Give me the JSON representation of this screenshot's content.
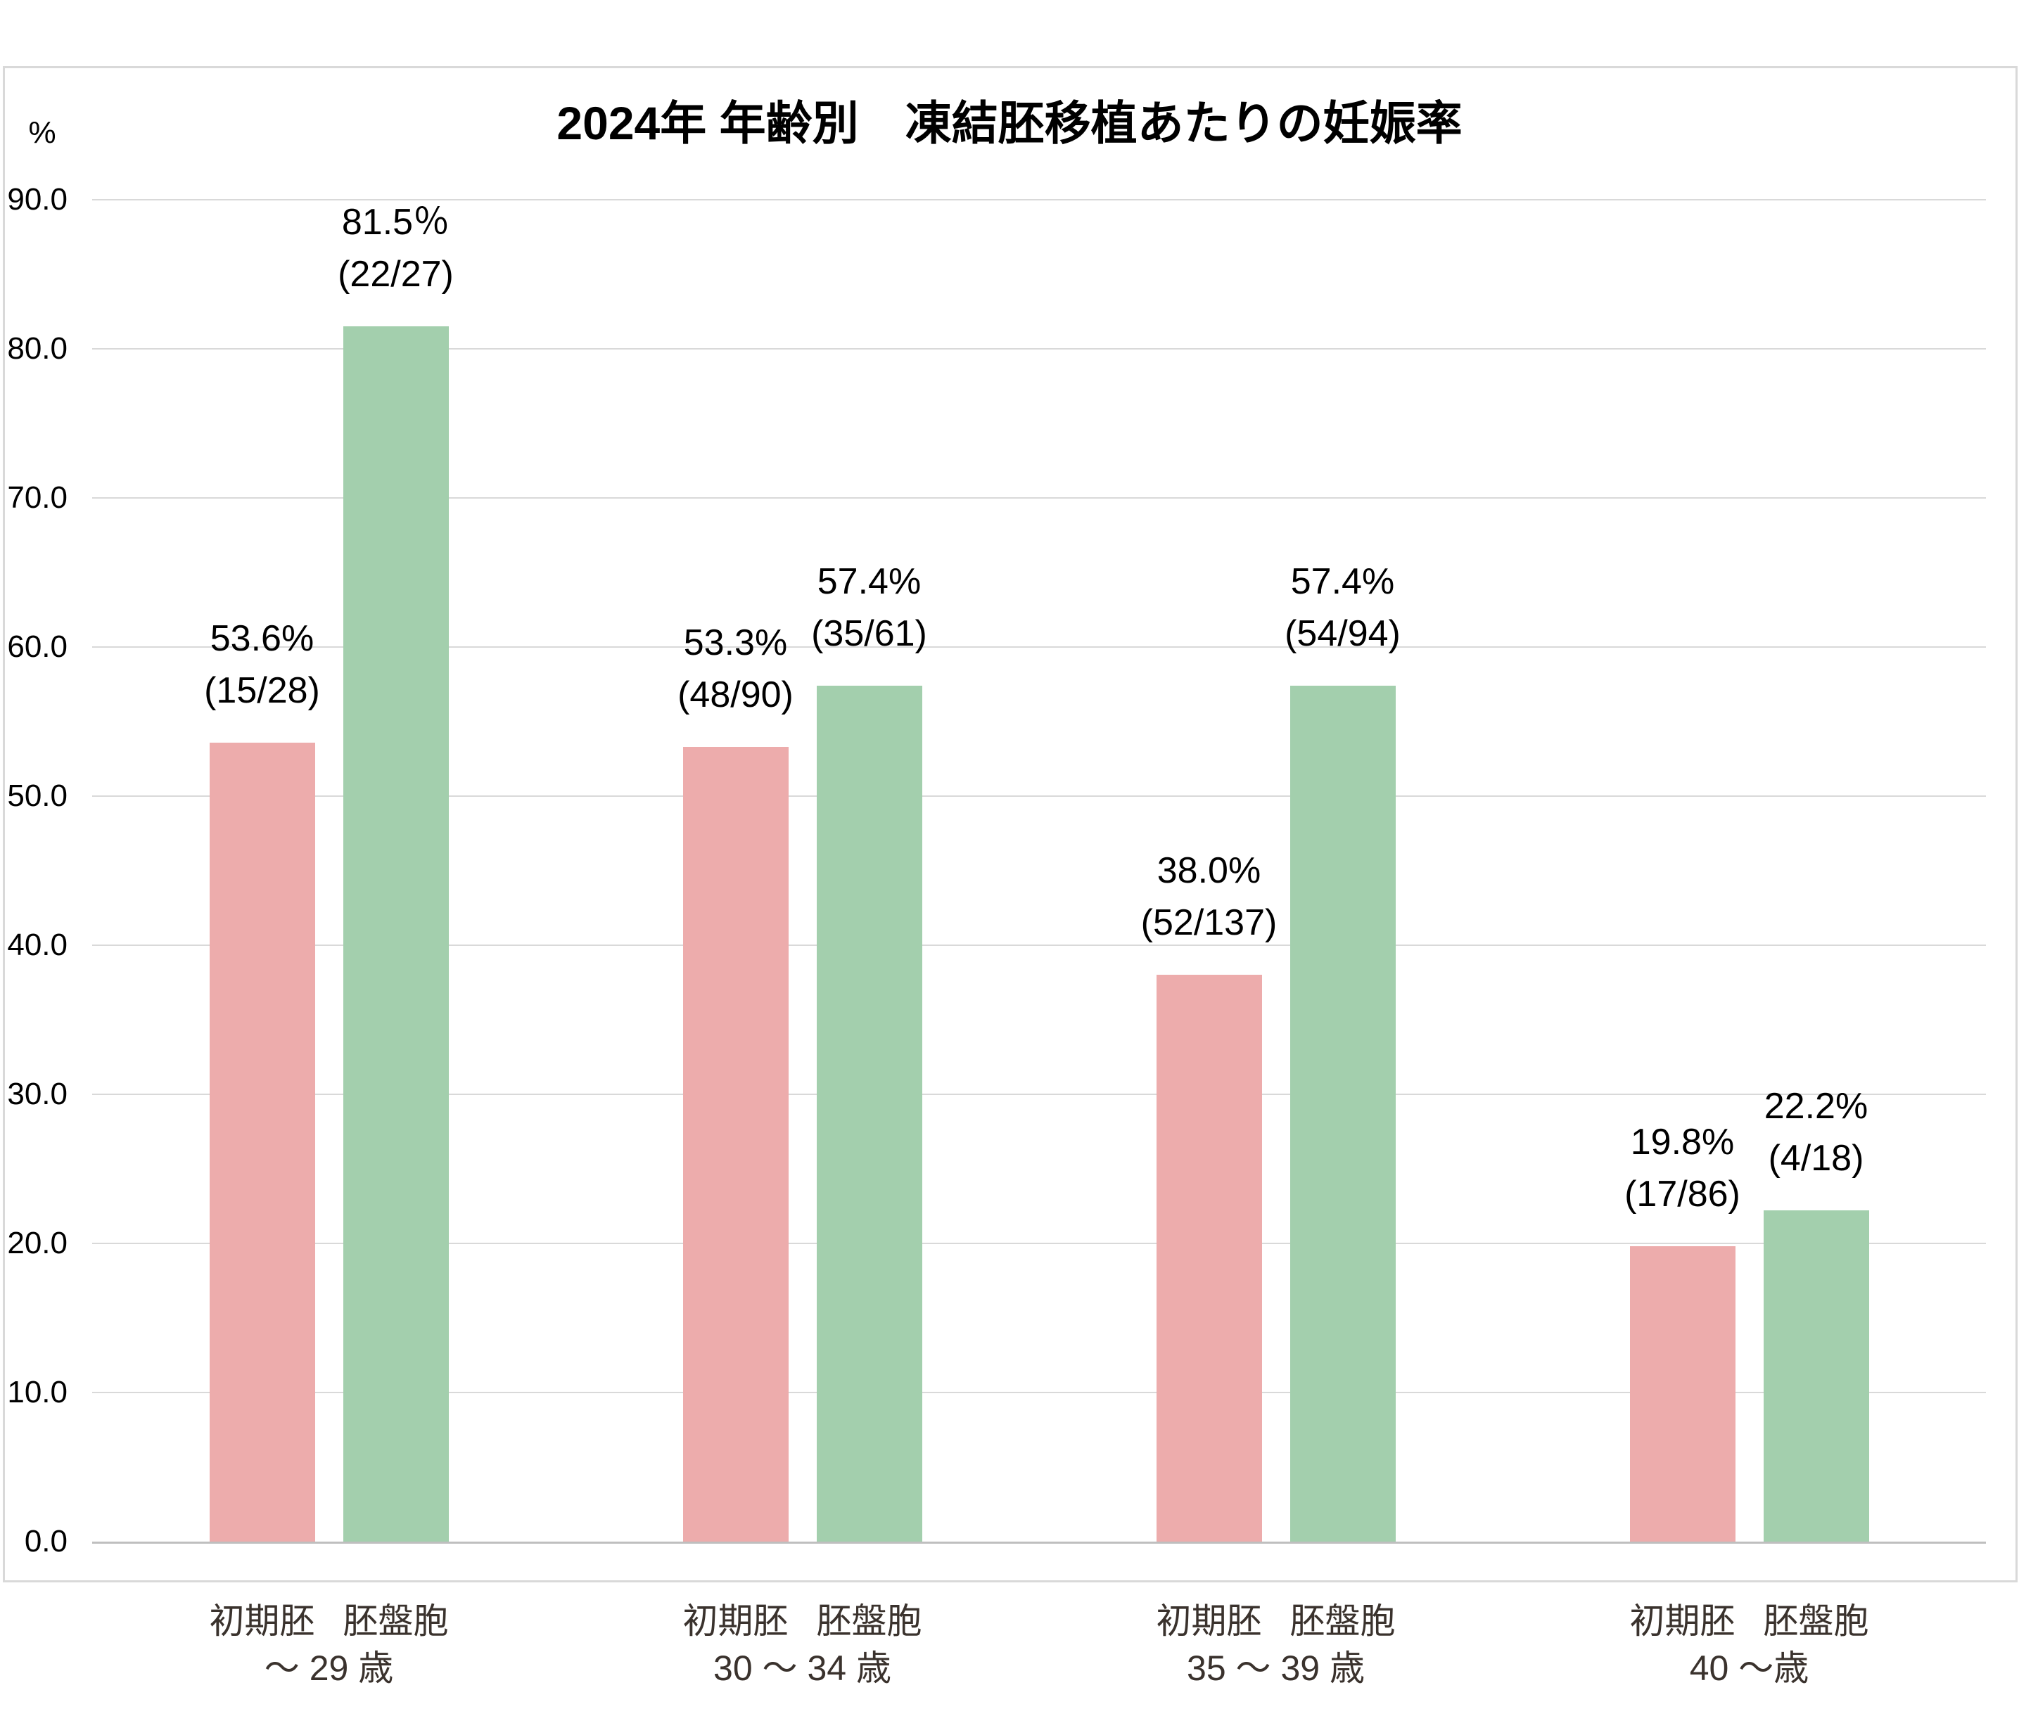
{
  "title": "2024年 年齢別　凍結胚移植あたりの妊娠率",
  "y_axis": {
    "unit": "%",
    "tick_labels": [
      "90.0",
      "80.0",
      "70.0",
      "60.0",
      "50.0",
      "40.0",
      "30.0",
      "20.0",
      "10.0",
      "0.0"
    ]
  },
  "styles": {
    "background": "#FFFFFF",
    "border_color": "#D9D9D9",
    "gridline_color": "#D9D9D9",
    "axis_line_color": "#BFBFBF",
    "title_color": "#000000",
    "data_label_color": "#000000",
    "category_label_color": "#3A322D",
    "early_embryo_bar_color": "#EDACAC",
    "blastocyst_bar_color": "#A3CFAD"
  },
  "chart_data": {
    "type": "bar",
    "title": "2024年 年齢別　凍結胚移植あたりの妊娠率",
    "y_unit": "%",
    "xlabel": "",
    "ylabel": "%",
    "ylim": [
      0,
      90
    ],
    "ytick_step": 10,
    "ytick_labels": [
      "90.0",
      "80.0",
      "70.0",
      "60.0",
      "50.0",
      "40.0",
      "30.0",
      "20.0",
      "10.0",
      "0.0"
    ],
    "grid": true,
    "legend_position": "none",
    "categories": [
      "～ 29 歳",
      "30 ～ 34 歳",
      "35 ～ 39 歳",
      "40 ～歳"
    ],
    "series": [
      {
        "name": "初期胚",
        "color": "#EDACAC",
        "values": [
          53.6,
          53.3,
          38.0,
          19.8
        ],
        "data_labels": [
          [
            "53.6%",
            "(15/28)"
          ],
          [
            "53.3%",
            "(48/90)"
          ],
          [
            "38.0%",
            "(52/137)"
          ],
          [
            "19.8%",
            "(17/86)"
          ]
        ]
      },
      {
        "name": "胚盤胞",
        "color": "#A3CFAD",
        "values": [
          81.5,
          57.4,
          57.4,
          22.2
        ],
        "data_labels": [
          [
            "81.5％",
            "(22/27)"
          ],
          [
            "57.4%",
            "(35/61)"
          ],
          [
            "57.4%",
            "(54/94)"
          ],
          [
            "22.2%",
            "(4/18)"
          ]
        ]
      }
    ]
  }
}
